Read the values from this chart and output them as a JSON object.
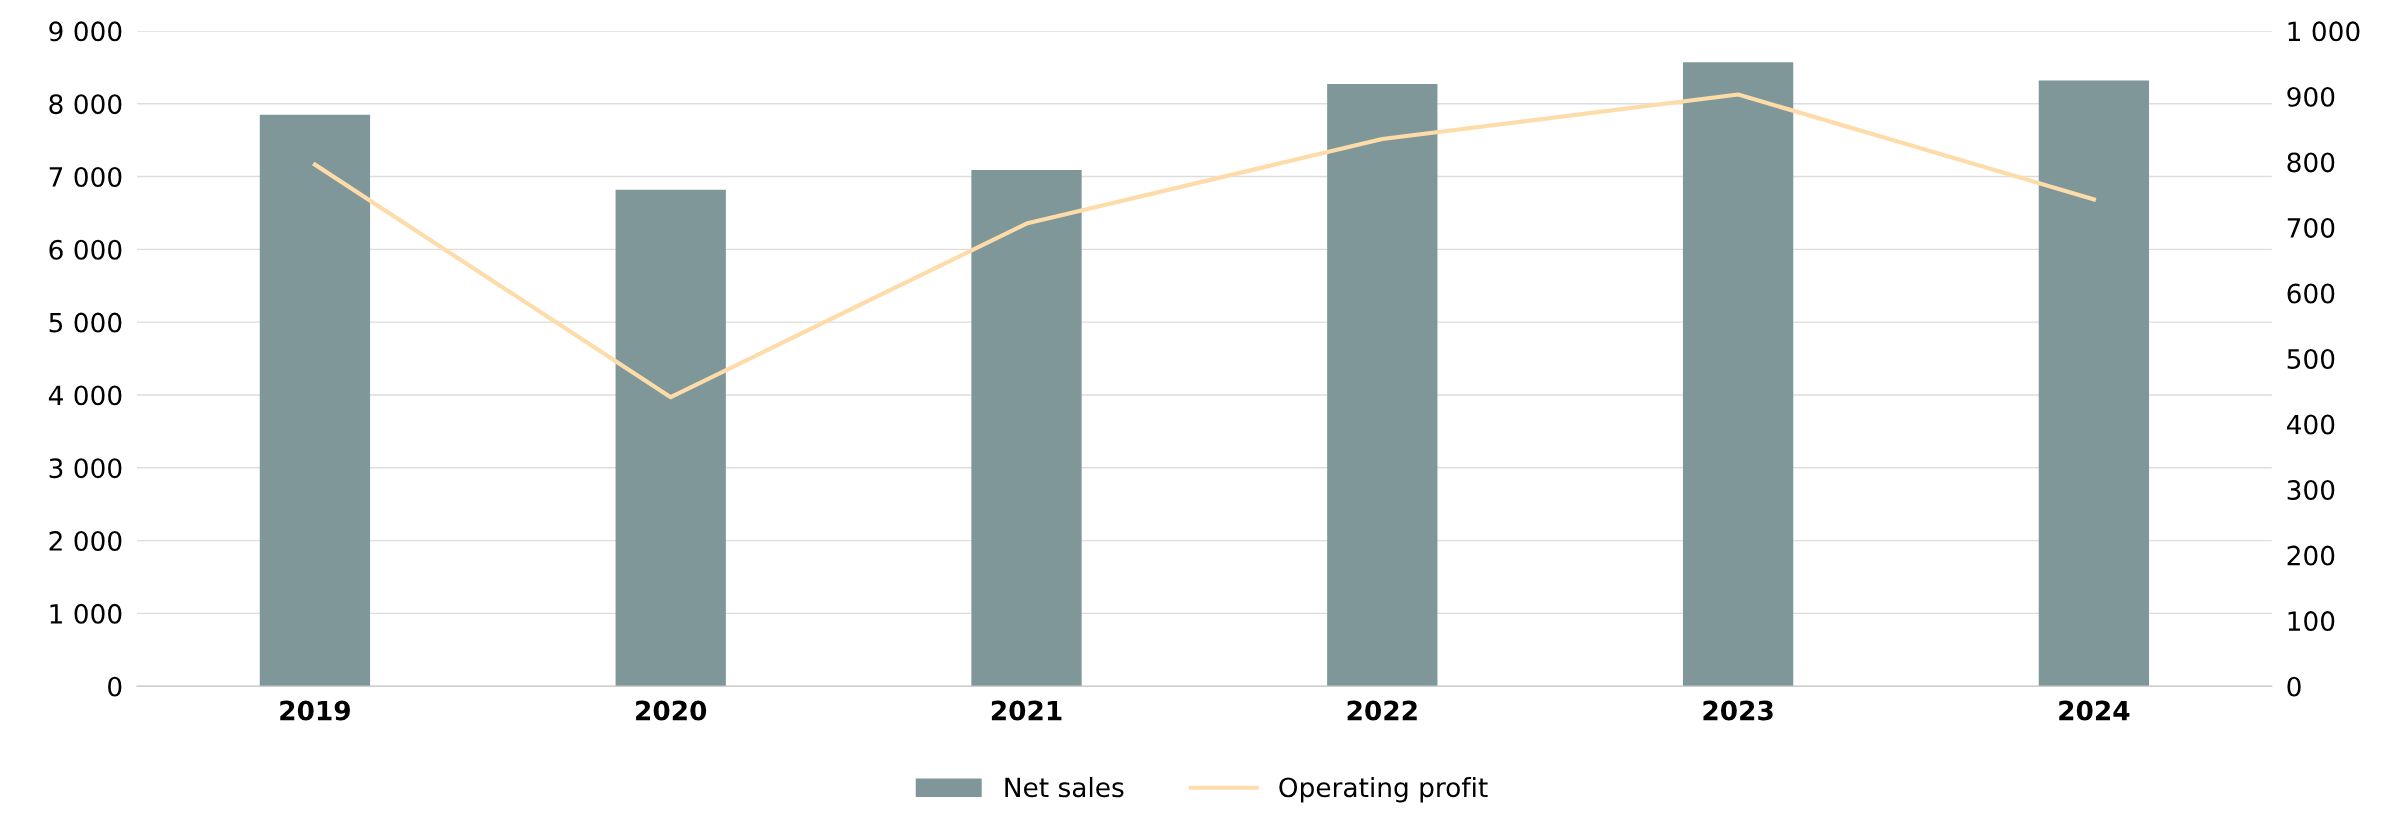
{
  "chart_data": {
    "type": "bar",
    "categories": [
      "2019",
      "2020",
      "2021",
      "2022",
      "2023",
      "2024"
    ],
    "series": [
      {
        "name": "Net sales",
        "color": "#7f9799",
        "values": [
          7850,
          6820,
          7090,
          8270,
          8570,
          8320
        ]
      },
      {
        "name": "Operating profit",
        "type": "line",
        "axis": "y2",
        "color": "#fddcaa",
        "values": [
          796,
          441,
          706,
          835,
          903,
          743
        ]
      }
    ],
    "ylim": [
      0,
      9000
    ],
    "yticks": [
      {
        "value": 0,
        "label": "0"
      },
      {
        "value": 1000,
        "label": "1 000"
      },
      {
        "value": 2000,
        "label": "2 000"
      },
      {
        "value": 3000,
        "label": "3 000"
      },
      {
        "value": 4000,
        "label": "4 000"
      },
      {
        "value": 5000,
        "label": "5 000"
      },
      {
        "value": 6000,
        "label": "6 000"
      },
      {
        "value": 7000,
        "label": "7 000"
      },
      {
        "value": 8000,
        "label": "8 000"
      },
      {
        "value": 9000,
        "label": "9 000"
      }
    ],
    "y2lim": [
      0,
      1000
    ],
    "y2ticks": [
      0,
      100,
      200,
      300,
      400,
      500,
      600,
      700,
      800,
      900,
      {
        "value": 1000,
        "label": "1 000"
      }
    ],
    "grid": "y",
    "legend": "bottom",
    "marker": "none"
  }
}
